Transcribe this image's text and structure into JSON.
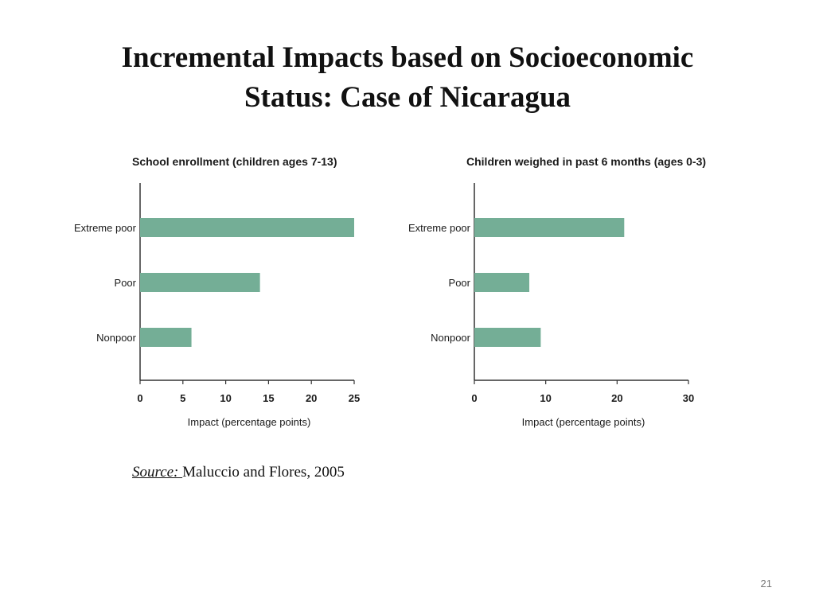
{
  "slide": {
    "title_line1": "Incremental Impacts based on Socioeconomic",
    "title_line2": "Status: Case of Nicaragua",
    "source_label": "Source: ",
    "source_text": "Maluccio and Flores, 2005",
    "page_number": "21"
  },
  "chart_data": [
    {
      "type": "bar",
      "orientation": "horizontal",
      "title": "School enrollment (children ages 7-13)",
      "categories": [
        "Extreme poor",
        "Poor",
        "Nonpoor"
      ],
      "values": [
        25,
        14,
        6
      ],
      "xlabel": "Impact (percentage points)",
      "ylabel": "",
      "xlim": [
        0,
        25
      ],
      "xticks": [
        0,
        5,
        10,
        15,
        20,
        25
      ],
      "grid": false,
      "bar_color": "#74ae96"
    },
    {
      "type": "bar",
      "orientation": "horizontal",
      "title": "Children weighed in past 6 months (ages 0-3)",
      "categories": [
        "Extreme poor",
        "Poor",
        "Nonpoor"
      ],
      "values": [
        21,
        7.7,
        9.3
      ],
      "xlabel": "Impact (percentage points)",
      "ylabel": "",
      "xlim": [
        0,
        30
      ],
      "xticks": [
        0,
        10,
        20,
        30
      ],
      "grid": false,
      "bar_color": "#74ae96"
    }
  ]
}
